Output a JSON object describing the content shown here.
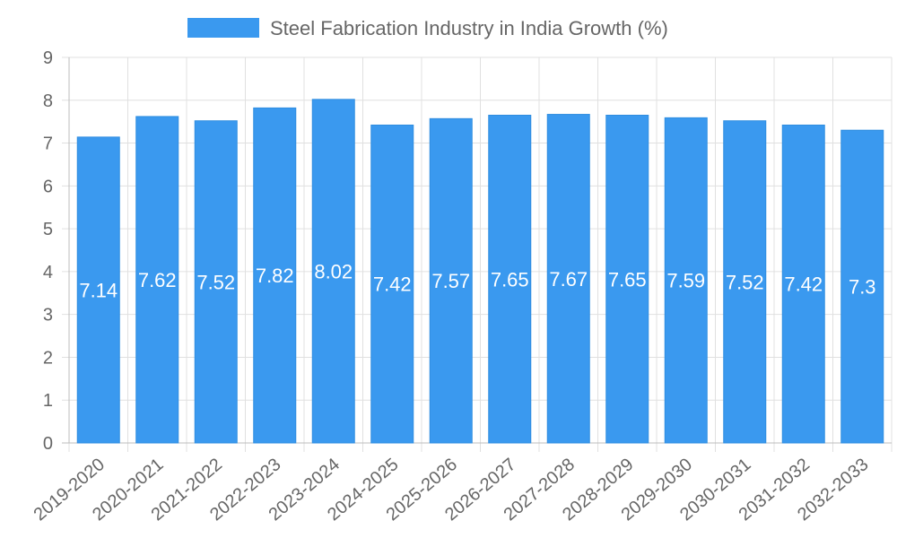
{
  "chart_data": {
    "type": "bar",
    "categories": [
      "2019-2020",
      "2020-2021",
      "2021-2022",
      "2022-2023",
      "2023-2024",
      "2024-2025",
      "2025-2026",
      "2026-2027",
      "2027-2028",
      "2028-2029",
      "2029-2030",
      "2030-2031",
      "2031-2032",
      "2032-2033"
    ],
    "series": [
      {
        "name": "Steel Fabrication Industry in India Growth (%)",
        "values": [
          7.14,
          7.62,
          7.52,
          7.82,
          8.02,
          7.42,
          7.57,
          7.65,
          7.67,
          7.65,
          7.59,
          7.52,
          7.42,
          7.3
        ],
        "color": "#3a99ef"
      }
    ],
    "y_ticks": [
      "0",
      "1",
      "2",
      "3",
      "4",
      "5",
      "6",
      "7",
      "8",
      "9"
    ],
    "ylim": [
      0,
      9
    ],
    "legend_position": "top",
    "grid": true,
    "title": "",
    "xlabel": "",
    "ylabel": ""
  }
}
